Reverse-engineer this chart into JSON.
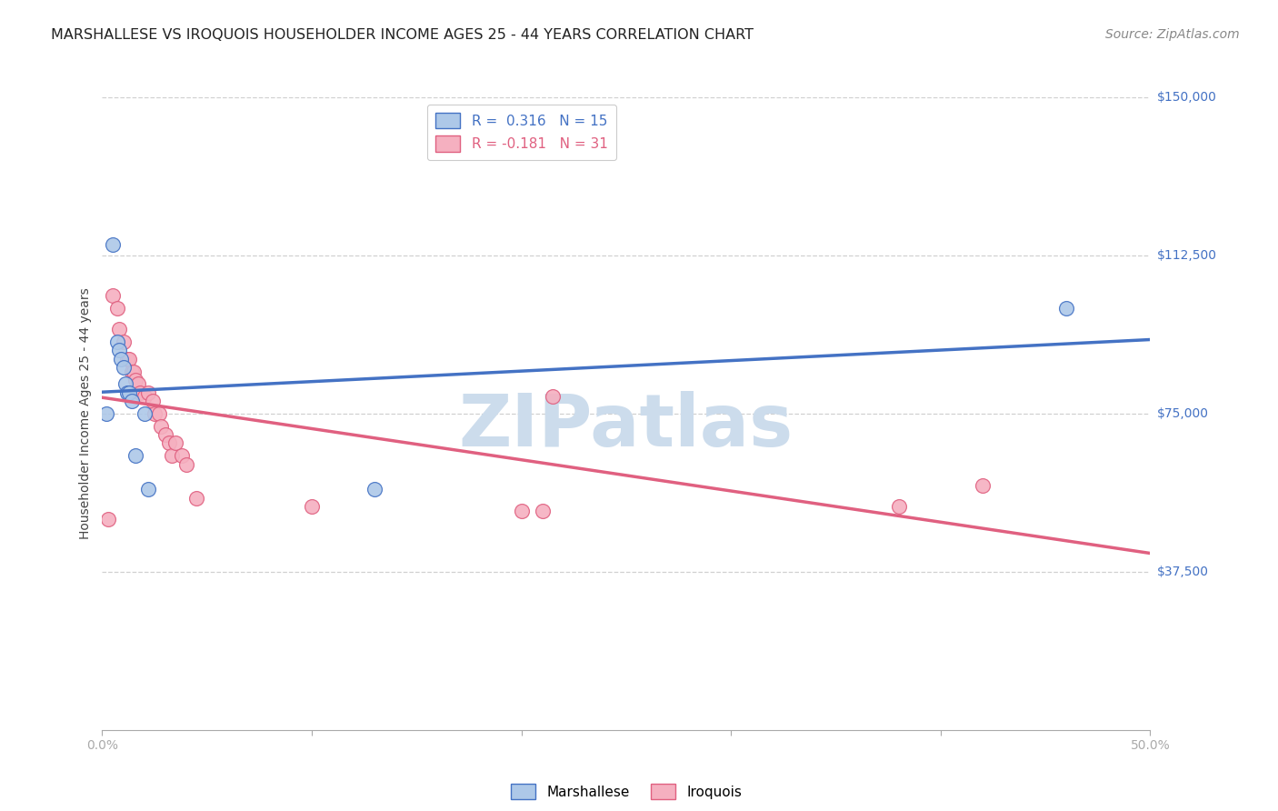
{
  "title": "MARSHALLESE VS IROQUOIS HOUSEHOLDER INCOME AGES 25 - 44 YEARS CORRELATION CHART",
  "source": "Source: ZipAtlas.com",
  "ylabel": "Householder Income Ages 25 - 44 years",
  "xlim": [
    0.0,
    0.5
  ],
  "ylim": [
    0,
    150000
  ],
  "xtick_positions": [
    0.0,
    0.1,
    0.2,
    0.3,
    0.4,
    0.5
  ],
  "xticklabels": [
    "0.0%",
    "",
    "",
    "",
    "",
    "50.0%"
  ],
  "ytick_labels_right": [
    "$150,000",
    "$112,500",
    "$75,000",
    "$37,500"
  ],
  "ytick_vals_right": [
    150000,
    112500,
    75000,
    37500
  ],
  "background_color": "#ffffff",
  "grid_color": "#d0d0d0",
  "marshallese_color": "#adc8e8",
  "iroquois_color": "#f5b0c0",
  "marshallese_line_color": "#4472c4",
  "iroquois_line_color": "#e06080",
  "legend_label_blue": "R =  0.316   N = 15",
  "legend_label_pink": "R = -0.181   N = 31",
  "legend_label_marshallese": "Marshallese",
  "legend_label_iroquois": "Iroquois",
  "marshallese_x": [
    0.002,
    0.005,
    0.007,
    0.008,
    0.009,
    0.01,
    0.011,
    0.012,
    0.013,
    0.014,
    0.016,
    0.02,
    0.022,
    0.13,
    0.46
  ],
  "marshallese_y": [
    75000,
    115000,
    92000,
    90000,
    88000,
    86000,
    82000,
    80000,
    80000,
    78000,
    65000,
    75000,
    57000,
    57000,
    100000
  ],
  "iroquois_x": [
    0.003,
    0.005,
    0.007,
    0.008,
    0.01,
    0.012,
    0.013,
    0.014,
    0.015,
    0.016,
    0.017,
    0.018,
    0.02,
    0.022,
    0.024,
    0.025,
    0.027,
    0.028,
    0.03,
    0.032,
    0.033,
    0.035,
    0.038,
    0.04,
    0.045,
    0.1,
    0.2,
    0.21,
    0.215,
    0.38,
    0.42
  ],
  "iroquois_y": [
    50000,
    103000,
    100000,
    95000,
    92000,
    88000,
    88000,
    85000,
    85000,
    83000,
    82000,
    80000,
    79000,
    80000,
    78000,
    75000,
    75000,
    72000,
    70000,
    68000,
    65000,
    68000,
    65000,
    63000,
    55000,
    53000,
    52000,
    52000,
    79000,
    53000,
    58000
  ],
  "watermark_text": "ZIPatlas",
  "watermark_color": "#ccdcec",
  "title_fontsize": 11.5,
  "axis_label_fontsize": 10,
  "tick_fontsize": 10,
  "legend_fontsize": 11,
  "source_fontsize": 10
}
